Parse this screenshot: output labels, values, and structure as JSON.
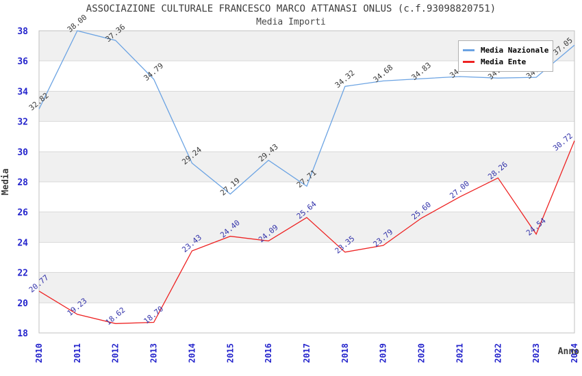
{
  "header": {
    "title": "ASSOCIAZIONE CULTURALE FRANCESCO MARCO ATTANASI ONLUS (c.f.93098820751)",
    "subtitle": "Media Importi"
  },
  "axes": {
    "y_label": "Media",
    "x_label": "Anno",
    "y_ticks": [
      18,
      20,
      22,
      24,
      26,
      28,
      30,
      32,
      34,
      36,
      38
    ],
    "x_ticks": [
      "2010",
      "2011",
      "2012",
      "2013",
      "2014",
      "2015",
      "2016",
      "2017",
      "2018",
      "2019",
      "2020",
      "2021",
      "2022",
      "2023",
      "2024"
    ],
    "tick_color": "#2424cc",
    "axis_title_color": "#3c3c3c"
  },
  "legend": {
    "items": [
      {
        "label": "Media Nazionale",
        "color": "#6ba3e3"
      },
      {
        "label": "Media Ente",
        "color": "#ee2222"
      }
    ]
  },
  "chart_data": {
    "type": "line",
    "title": "ASSOCIAZIONE CULTURALE FRANCESCO MARCO ATTANASI ONLUS (c.f.93098820751)",
    "subtitle": "Media Importi",
    "xlabel": "Anno",
    "ylabel": "Media",
    "ylim": [
      18,
      38
    ],
    "grid": "horizontal-bands-alternating",
    "legend_position": "top-right-inside",
    "categories": [
      "2010",
      "2011",
      "2012",
      "2013",
      "2014",
      "2015",
      "2016",
      "2017",
      "2018",
      "2019",
      "2020",
      "2021",
      "2022",
      "2023",
      "2024"
    ],
    "series": [
      {
        "name": "Media Nazionale",
        "color": "#6ba3e3",
        "label_color": "#3a3a3a",
        "values": [
          32.82,
          38.0,
          37.36,
          34.79,
          29.24,
          27.19,
          29.43,
          27.71,
          34.32,
          34.68,
          34.83,
          34.97,
          34.87,
          34.92,
          37.05
        ]
      },
      {
        "name": "Media Ente",
        "color": "#ee2222",
        "label_color": "#3333aa",
        "values": [
          20.77,
          19.23,
          18.62,
          18.7,
          23.43,
          24.4,
          24.09,
          25.64,
          23.35,
          23.79,
          25.6,
          27.0,
          28.26,
          24.54,
          30.72
        ]
      }
    ]
  },
  "colors": {
    "band_gray": "#f0f0f0",
    "band_white": "#ffffff",
    "gridline": "#d9d9d9",
    "plot_border": "#c0c0c0"
  }
}
